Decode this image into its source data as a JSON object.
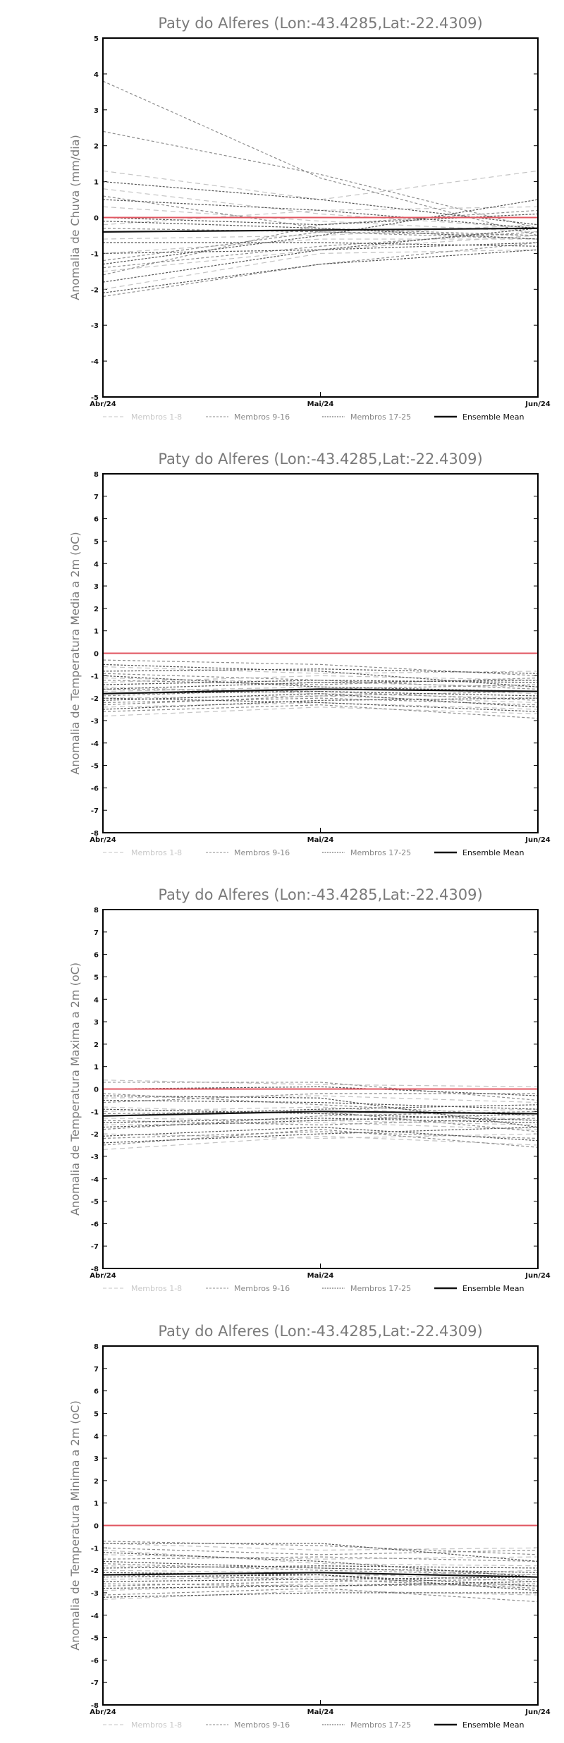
{
  "legend": [
    "Membros 1-8",
    "Membros 9-16",
    "Membros 17-25",
    "Ensemble Mean"
  ],
  "colors": {
    "zero_line": "#e05560",
    "mean": "#111111",
    "m1": "#c4c4c4",
    "m2": "#8c8c8c",
    "m3": "#555555"
  },
  "chart_data": [
    {
      "type": "line",
      "title": "Paty do Alferes (Lon:-43.4285,Lat:-22.4309)",
      "ylabel": "Anomalia de Chuva (mm/dia)",
      "categories": [
        "Abr/24",
        "Mai/24",
        "Jun/24"
      ],
      "ylim": [
        -5,
        5
      ],
      "yticks": [
        -5,
        -4,
        -3,
        -2,
        -1,
        0,
        1,
        2,
        3,
        4,
        5
      ],
      "reference_line": 0,
      "mean": [
        -0.4,
        -0.35,
        -0.3
      ],
      "series": [
        {
          "group": 1,
          "values": [
            1.3,
            0.5,
            1.3
          ]
        },
        {
          "group": 1,
          "values": [
            0.8,
            0.1,
            -0.3
          ]
        },
        {
          "group": 1,
          "values": [
            -0.2,
            0.2,
            0.3
          ]
        },
        {
          "group": 1,
          "values": [
            -1.0,
            -0.6,
            -0.6
          ]
        },
        {
          "group": 1,
          "values": [
            -1.5,
            -0.9,
            -0.5
          ]
        },
        {
          "group": 1,
          "values": [
            -2.0,
            -1.0,
            -0.9
          ]
        },
        {
          "group": 1,
          "values": [
            0.3,
            -0.1,
            -0.4
          ]
        },
        {
          "group": 1,
          "values": [
            -0.6,
            -0.5,
            -0.2
          ]
        },
        {
          "group": 2,
          "values": [
            3.8,
            1.1,
            -0.5
          ]
        },
        {
          "group": 2,
          "values": [
            2.4,
            1.2,
            -0.3
          ]
        },
        {
          "group": 2,
          "values": [
            0.6,
            -0.3,
            -0.5
          ]
        },
        {
          "group": 2,
          "values": [
            -1.2,
            -0.4,
            -0.5
          ]
        },
        {
          "group": 2,
          "values": [
            -1.6,
            -0.2,
            0.2
          ]
        },
        {
          "group": 2,
          "values": [
            -2.2,
            -1.3,
            -0.7
          ]
        },
        {
          "group": 2,
          "values": [
            -0.3,
            -0.4,
            -0.6
          ]
        },
        {
          "group": 2,
          "values": [
            -1.4,
            -0.8,
            -0.4
          ]
        },
        {
          "group": 3,
          "values": [
            1.0,
            0.5,
            -0.2
          ]
        },
        {
          "group": 3,
          "values": [
            0.5,
            0.2,
            -0.3
          ]
        },
        {
          "group": 3,
          "values": [
            -0.1,
            -0.3,
            -0.6
          ]
        },
        {
          "group": 3,
          "values": [
            -0.7,
            -0.7,
            -0.8
          ]
        },
        {
          "group": 3,
          "values": [
            -1.3,
            -0.5,
            0.5
          ]
        },
        {
          "group": 3,
          "values": [
            -1.8,
            -0.9,
            -0.3
          ]
        },
        {
          "group": 3,
          "values": [
            -2.1,
            -1.3,
            -0.9
          ]
        },
        {
          "group": 3,
          "values": [
            -1.0,
            -0.9,
            -0.7
          ]
        },
        {
          "group": 3,
          "values": [
            0.0,
            -0.2,
            0.1
          ]
        }
      ]
    },
    {
      "type": "line",
      "title": "Paty do Alferes (Lon:-43.4285,Lat:-22.4309)",
      "ylabel": "Anomalia de Temperatura Media a 2m (oC)",
      "categories": [
        "Abr/24",
        "Mai/24",
        "Jun/24"
      ],
      "ylim": [
        -8,
        8
      ],
      "yticks": [
        -8,
        -7,
        -6,
        -5,
        -4,
        -3,
        -2,
        -1,
        0,
        1,
        2,
        3,
        4,
        5,
        6,
        7,
        8
      ],
      "reference_line": 0,
      "mean": [
        -1.8,
        -1.6,
        -1.7
      ],
      "series": [
        {
          "group": 1,
          "values": [
            -0.6,
            -0.9,
            -0.8
          ]
        },
        {
          "group": 1,
          "values": [
            -1.1,
            -1.3,
            -1.5
          ]
        },
        {
          "group": 1,
          "values": [
            -1.5,
            -1.8,
            -2.0
          ]
        },
        {
          "group": 1,
          "values": [
            -2.0,
            -1.9,
            -2.2
          ]
        },
        {
          "group": 1,
          "values": [
            -2.4,
            -2.2,
            -2.5
          ]
        },
        {
          "group": 1,
          "values": [
            -2.8,
            -2.4,
            -2.7
          ]
        },
        {
          "group": 1,
          "values": [
            -1.3,
            -1.0,
            -1.2
          ]
        },
        {
          "group": 1,
          "values": [
            -1.7,
            -1.5,
            -1.8
          ]
        },
        {
          "group": 2,
          "values": [
            -0.3,
            -0.5,
            -1.0
          ]
        },
        {
          "group": 2,
          "values": [
            -1.2,
            -1.4,
            -1.1
          ]
        },
        {
          "group": 2,
          "values": [
            -1.9,
            -1.6,
            -1.4
          ]
        },
        {
          "group": 2,
          "values": [
            -2.2,
            -2.0,
            -2.3
          ]
        },
        {
          "group": 2,
          "values": [
            -2.6,
            -2.3,
            -2.9
          ]
        },
        {
          "group": 2,
          "values": [
            -0.9,
            -1.2,
            -1.6
          ]
        },
        {
          "group": 2,
          "values": [
            -1.6,
            -1.7,
            -2.1
          ]
        },
        {
          "group": 2,
          "values": [
            -2.3,
            -1.9,
            -1.7
          ]
        },
        {
          "group": 3,
          "values": [
            -0.8,
            -0.7,
            -0.9
          ]
        },
        {
          "group": 3,
          "values": [
            -1.4,
            -1.2,
            -1.3
          ]
        },
        {
          "group": 3,
          "values": [
            -1.8,
            -1.7,
            -1.9
          ]
        },
        {
          "group": 3,
          "values": [
            -2.1,
            -1.8,
            -2.4
          ]
        },
        {
          "group": 3,
          "values": [
            -2.5,
            -2.1,
            -2.0
          ]
        },
        {
          "group": 3,
          "values": [
            -1.0,
            -1.5,
            -1.7
          ]
        },
        {
          "group": 3,
          "values": [
            -1.6,
            -1.3,
            -1.2
          ]
        },
        {
          "group": 3,
          "values": [
            -2.0,
            -2.2,
            -2.6
          ]
        },
        {
          "group": 3,
          "values": [
            -0.5,
            -0.8,
            -1.5
          ]
        }
      ]
    },
    {
      "type": "line",
      "title": "Paty do Alferes (Lon:-43.4285,Lat:-22.4309)",
      "ylabel": "Anomalia de Temperatura Maxima a 2m (oC)",
      "categories": [
        "Abr/24",
        "Mai/24",
        "Jun/24"
      ],
      "ylim": [
        -8,
        8
      ],
      "yticks": [
        -8,
        -7,
        -6,
        -5,
        -4,
        -3,
        -2,
        -1,
        0,
        1,
        2,
        3,
        4,
        5,
        6,
        7,
        8
      ],
      "reference_line": 0,
      "mean": [
        -1.2,
        -1.0,
        -1.1
      ],
      "series": [
        {
          "group": 1,
          "values": [
            0.4,
            0.2,
            0.1
          ]
        },
        {
          "group": 1,
          "values": [
            -0.4,
            -0.3,
            -0.6
          ]
        },
        {
          "group": 1,
          "values": [
            -1.0,
            -0.8,
            -1.4
          ]
        },
        {
          "group": 1,
          "values": [
            -1.6,
            -1.5,
            -1.8
          ]
        },
        {
          "group": 1,
          "values": [
            -2.0,
            -2.2,
            -2.0
          ]
        },
        {
          "group": 1,
          "values": [
            -2.7,
            -2.1,
            -2.5
          ]
        },
        {
          "group": 1,
          "values": [
            -0.8,
            -1.1,
            -0.9
          ]
        },
        {
          "group": 1,
          "values": [
            -1.3,
            -1.4,
            -1.6
          ]
        },
        {
          "group": 2,
          "values": [
            0.3,
            0.3,
            -0.5
          ]
        },
        {
          "group": 2,
          "values": [
            -0.6,
            -0.2,
            -0.2
          ]
        },
        {
          "group": 2,
          "values": [
            -1.1,
            -1.0,
            -1.9
          ]
        },
        {
          "group": 2,
          "values": [
            -1.8,
            -1.2,
            -1.0
          ]
        },
        {
          "group": 2,
          "values": [
            -2.5,
            -1.8,
            -2.6
          ]
        },
        {
          "group": 2,
          "values": [
            -0.2,
            -0.7,
            -1.2
          ]
        },
        {
          "group": 2,
          "values": [
            -1.4,
            -1.6,
            -1.3
          ]
        },
        {
          "group": 2,
          "values": [
            -2.2,
            -1.9,
            -2.2
          ]
        },
        {
          "group": 3,
          "values": [
            -0.5,
            -0.6,
            -0.9
          ]
        },
        {
          "group": 3,
          "values": [
            -1.2,
            -0.9,
            -0.7
          ]
        },
        {
          "group": 3,
          "values": [
            -1.5,
            -1.3,
            -1.5
          ]
        },
        {
          "group": 3,
          "values": [
            -2.1,
            -1.7,
            -2.3
          ]
        },
        {
          "group": 3,
          "values": [
            -2.4,
            -2.0,
            -1.7
          ]
        },
        {
          "group": 3,
          "values": [
            0.0,
            0.1,
            -0.3
          ]
        },
        {
          "group": 3,
          "values": [
            -0.9,
            -1.1,
            -1.4
          ]
        },
        {
          "group": 3,
          "values": [
            -1.7,
            -1.4,
            -1.1
          ]
        },
        {
          "group": 3,
          "values": [
            -0.3,
            -0.4,
            -1.7
          ]
        }
      ]
    },
    {
      "type": "line",
      "title": "Paty do Alferes (Lon:-43.4285,Lat:-22.4309)",
      "ylabel": "Anomalia de Temperatura Minima a 2m (oC)",
      "categories": [
        "Abr/24",
        "Mai/24",
        "Jun/24"
      ],
      "ylim": [
        -8,
        8
      ],
      "yticks": [
        -8,
        -7,
        -6,
        -5,
        -4,
        -3,
        -2,
        -1,
        0,
        1,
        2,
        3,
        4,
        5,
        6,
        7,
        8
      ],
      "reference_line": 0,
      "mean": [
        -2.2,
        -2.1,
        -2.3
      ],
      "series": [
        {
          "group": 1,
          "values": [
            -0.8,
            -1.1,
            -1.0
          ]
        },
        {
          "group": 1,
          "values": [
            -1.3,
            -1.5,
            -1.4
          ]
        },
        {
          "group": 1,
          "values": [
            -1.8,
            -1.9,
            -2.2
          ]
        },
        {
          "group": 1,
          "values": [
            -2.4,
            -2.3,
            -2.0
          ]
        },
        {
          "group": 1,
          "values": [
            -2.9,
            -2.6,
            -2.7
          ]
        },
        {
          "group": 1,
          "values": [
            -3.3,
            -2.9,
            -3.1
          ]
        },
        {
          "group": 1,
          "values": [
            -1.1,
            -1.7,
            -1.8
          ]
        },
        {
          "group": 1,
          "values": [
            -2.0,
            -2.1,
            -2.5
          ]
        },
        {
          "group": 2,
          "values": [
            -0.7,
            -0.9,
            -1.3
          ]
        },
        {
          "group": 2,
          "values": [
            -1.5,
            -1.4,
            -1.6
          ]
        },
        {
          "group": 2,
          "values": [
            -2.2,
            -2.4,
            -2.8
          ]
        },
        {
          "group": 2,
          "values": [
            -2.7,
            -2.5,
            -2.4
          ]
        },
        {
          "group": 2,
          "values": [
            -3.1,
            -2.8,
            -3.4
          ]
        },
        {
          "group": 2,
          "values": [
            -1.0,
            -1.3,
            -1.1
          ]
        },
        {
          "group": 2,
          "values": [
            -1.7,
            -2.0,
            -2.2
          ]
        },
        {
          "group": 2,
          "values": [
            -2.6,
            -2.7,
            -2.6
          ]
        },
        {
          "group": 3,
          "values": [
            -0.8,
            -0.8,
            -1.6
          ]
        },
        {
          "group": 3,
          "values": [
            -1.2,
            -1.6,
            -2.3
          ]
        },
        {
          "group": 3,
          "values": [
            -1.9,
            -1.8,
            -1.9
          ]
        },
        {
          "group": 3,
          "values": [
            -2.3,
            -2.2,
            -2.9
          ]
        },
        {
          "group": 3,
          "values": [
            -2.8,
            -2.7,
            -2.5
          ]
        },
        {
          "group": 3,
          "values": [
            -3.2,
            -3.0,
            -3.0
          ]
        },
        {
          "group": 3,
          "values": [
            -1.6,
            -1.9,
            -2.1
          ]
        },
        {
          "group": 3,
          "values": [
            -2.1,
            -2.2,
            -2.7
          ]
        },
        {
          "group": 3,
          "values": [
            -2.5,
            -2.4,
            -2.3
          ]
        }
      ]
    }
  ]
}
